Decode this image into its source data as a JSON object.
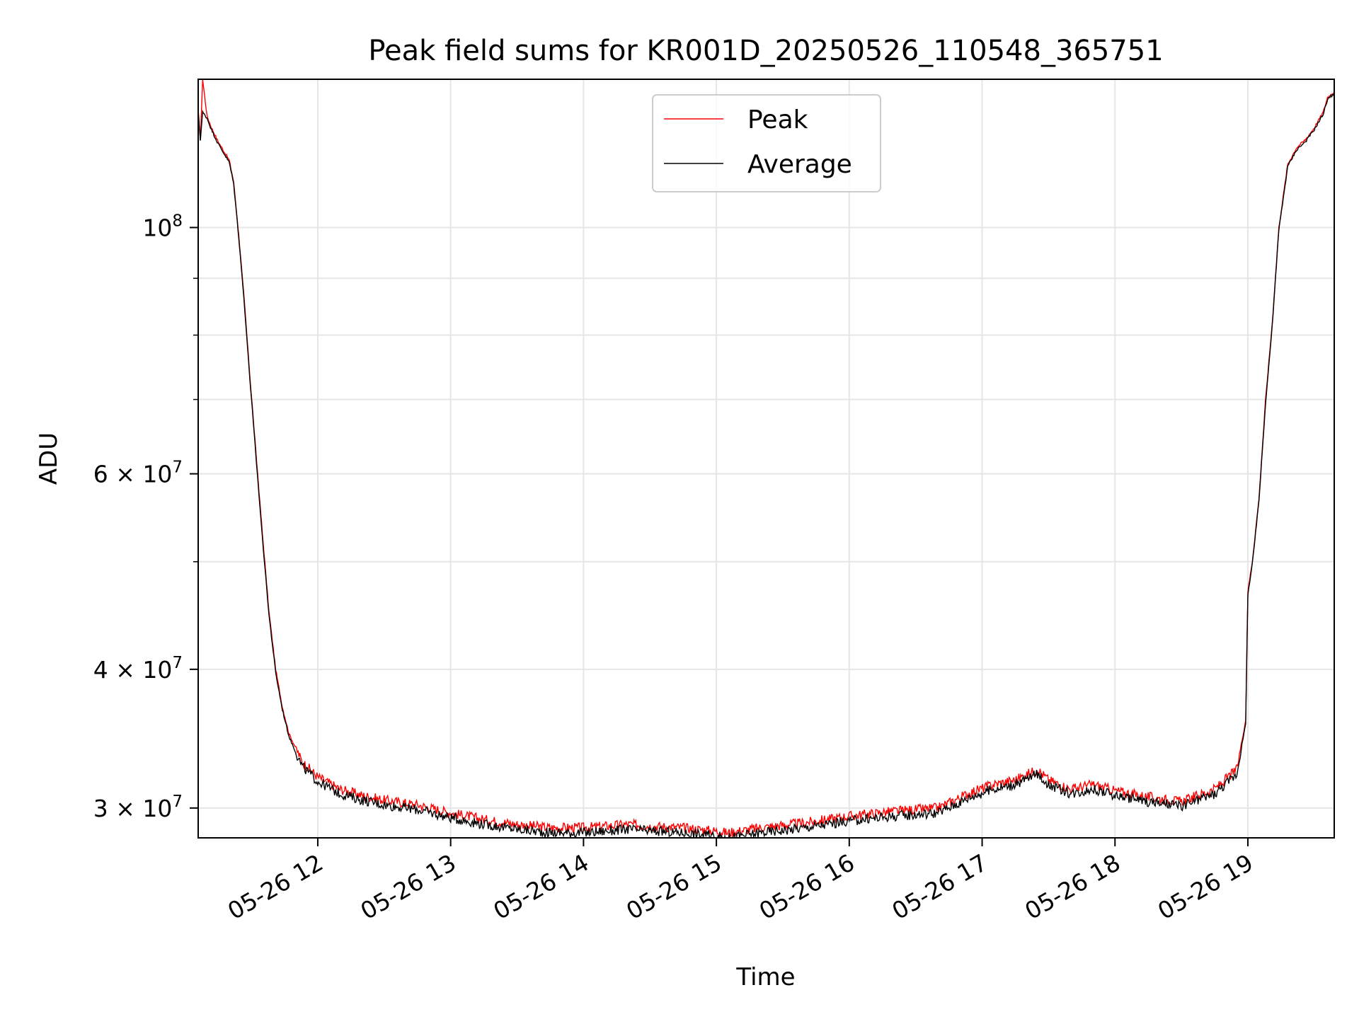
{
  "chart_data": {
    "type": "line",
    "title": "Peak field sums for KR001D_20250526_110548_365751",
    "xlabel": "Time",
    "ylabel": "ADU",
    "yscale": "log",
    "ylim": [
      28200000,
      136000000
    ],
    "xlim": [
      "2025-05-26 11:06",
      "2025-05-26 19:39"
    ],
    "grid": true,
    "legend_position": "top-center",
    "x_ticks": [
      {
        "value": "2025-05-26 12:00",
        "label": "05-26 12"
      },
      {
        "value": "2025-05-26 13:00",
        "label": "05-26 13"
      },
      {
        "value": "2025-05-26 14:00",
        "label": "05-26 14"
      },
      {
        "value": "2025-05-26 15:00",
        "label": "05-26 15"
      },
      {
        "value": "2025-05-26 16:00",
        "label": "05-26 16"
      },
      {
        "value": "2025-05-26 17:00",
        "label": "05-26 17"
      },
      {
        "value": "2025-05-26 18:00",
        "label": "05-26 18"
      },
      {
        "value": "2025-05-26 19:00",
        "label": "05-26 19"
      }
    ],
    "y_ticks": [
      {
        "value": 30000000,
        "label": "3 × 10",
        "exp": "7"
      },
      {
        "value": 40000000,
        "label": "4 × 10",
        "exp": "7"
      },
      {
        "value": 60000000,
        "label": "6 × 10",
        "exp": "7"
      },
      {
        "value": 100000000,
        "label": "10",
        "exp": "8"
      }
    ],
    "y_minor_ticks": [
      50000000,
      70000000,
      80000000,
      90000000
    ],
    "series": [
      {
        "name": "Peak",
        "color": "#ff0000",
        "x": [
          "2025-05-26 11:06",
          "2025-05-26 11:07",
          "2025-05-26 11:08",
          "2025-05-26 11:10",
          "2025-05-26 11:12",
          "2025-05-26 11:15",
          "2025-05-26 11:20",
          "2025-05-26 11:22",
          "2025-05-26 11:24",
          "2025-05-26 11:25",
          "2025-05-26 11:27",
          "2025-05-26 11:29",
          "2025-05-26 11:32",
          "2025-05-26 11:35",
          "2025-05-26 11:38",
          "2025-05-26 11:41",
          "2025-05-26 11:44",
          "2025-05-26 11:47",
          "2025-05-26 11:50",
          "2025-05-26 11:53",
          "2025-05-26 12:00",
          "2025-05-26 12:10",
          "2025-05-26 12:20",
          "2025-05-26 12:30",
          "2025-05-26 12:45",
          "2025-05-26 13:00",
          "2025-05-26 13:15",
          "2025-05-26 13:30",
          "2025-05-26 13:45",
          "2025-05-26 14:00",
          "2025-05-26 14:10",
          "2025-05-26 14:20",
          "2025-05-26 14:30",
          "2025-05-26 14:45",
          "2025-05-26 15:00",
          "2025-05-26 15:05",
          "2025-05-26 15:20",
          "2025-05-26 15:40",
          "2025-05-26 16:00",
          "2025-05-26 16:20",
          "2025-05-26 16:40",
          "2025-05-26 16:55",
          "2025-05-26 17:05",
          "2025-05-26 17:15",
          "2025-05-26 17:25",
          "2025-05-26 17:30",
          "2025-05-26 17:40",
          "2025-05-26 17:50",
          "2025-05-26 18:00",
          "2025-05-26 18:15",
          "2025-05-26 18:30",
          "2025-05-26 18:45",
          "2025-05-26 18:55",
          "2025-05-26 18:59",
          "2025-05-26 19:00",
          "2025-05-26 19:02",
          "2025-05-26 19:05",
          "2025-05-26 19:08",
          "2025-05-26 19:11",
          "2025-05-26 19:14",
          "2025-05-26 19:18",
          "2025-05-26 19:22",
          "2025-05-26 19:26",
          "2025-05-26 19:30",
          "2025-05-26 19:34",
          "2025-05-26 19:36",
          "2025-05-26 19:39"
        ],
        "y": [
          127500000,
          120000000,
          136000000,
          126000000,
          123000000,
          119500000,
          115000000,
          110000000,
          100000000,
          95000000,
          85000000,
          75000000,
          63000000,
          53000000,
          45000000,
          40000000,
          37000000,
          35000000,
          34000000,
          33000000,
          32000000,
          31200000,
          30800000,
          30500000,
          30200000,
          29700000,
          29300000,
          29000000,
          28800000,
          28800000,
          28900000,
          29000000,
          28900000,
          28800000,
          28600000,
          28500000,
          28800000,
          29100000,
          29500000,
          29800000,
          30000000,
          31000000,
          31500000,
          31800000,
          32500000,
          31800000,
          31200000,
          31500000,
          31100000,
          30700000,
          30400000,
          31200000,
          32500000,
          36000000,
          47000000,
          50000000,
          57000000,
          70000000,
          82000000,
          100000000,
          114000000,
          118000000,
          120000000,
          123000000,
          127000000,
          131000000,
          132500000
        ]
      },
      {
        "name": "Average",
        "color": "#000000",
        "x": [
          "2025-05-26 11:06",
          "2025-05-26 11:07",
          "2025-05-26 11:08",
          "2025-05-26 11:10",
          "2025-05-26 11:12",
          "2025-05-26 11:15",
          "2025-05-26 11:20",
          "2025-05-26 11:22",
          "2025-05-26 11:24",
          "2025-05-26 11:25",
          "2025-05-26 11:27",
          "2025-05-26 11:29",
          "2025-05-26 11:32",
          "2025-05-26 11:35",
          "2025-05-26 11:38",
          "2025-05-26 11:41",
          "2025-05-26 11:44",
          "2025-05-26 11:47",
          "2025-05-26 11:50",
          "2025-05-26 11:53",
          "2025-05-26 12:00",
          "2025-05-26 12:10",
          "2025-05-26 12:20",
          "2025-05-26 12:30",
          "2025-05-26 12:45",
          "2025-05-26 13:00",
          "2025-05-26 13:15",
          "2025-05-26 13:30",
          "2025-05-26 13:45",
          "2025-05-26 14:00",
          "2025-05-26 14:10",
          "2025-05-26 14:20",
          "2025-05-26 14:30",
          "2025-05-26 14:45",
          "2025-05-26 15:00",
          "2025-05-26 15:05",
          "2025-05-26 15:20",
          "2025-05-26 15:40",
          "2025-05-26 16:00",
          "2025-05-26 16:20",
          "2025-05-26 16:40",
          "2025-05-26 16:55",
          "2025-05-26 17:05",
          "2025-05-26 17:15",
          "2025-05-26 17:25",
          "2025-05-26 17:30",
          "2025-05-26 17:40",
          "2025-05-26 17:50",
          "2025-05-26 18:00",
          "2025-05-26 18:15",
          "2025-05-26 18:30",
          "2025-05-26 18:45",
          "2025-05-26 18:55",
          "2025-05-26 18:59",
          "2025-05-26 19:00",
          "2025-05-26 19:02",
          "2025-05-26 19:05",
          "2025-05-26 19:08",
          "2025-05-26 19:11",
          "2025-05-26 19:14",
          "2025-05-26 19:18",
          "2025-05-26 19:22",
          "2025-05-26 19:26",
          "2025-05-26 19:30",
          "2025-05-26 19:34",
          "2025-05-26 19:36",
          "2025-05-26 19:39"
        ],
        "y": [
          127000000,
          120000000,
          127000000,
          125500000,
          122500000,
          119000000,
          114500000,
          109500000,
          99500000,
          94500000,
          84500000,
          74500000,
          62500000,
          52500000,
          44700000,
          39700000,
          36800000,
          34800000,
          33700000,
          32700000,
          31700000,
          30900000,
          30500000,
          30200000,
          29900000,
          29400000,
          29000000,
          28700000,
          28500000,
          28500000,
          28600000,
          28700000,
          28600000,
          28500000,
          28300000,
          28200000,
          28500000,
          28800000,
          29200000,
          29500000,
          29700000,
          30700000,
          31200000,
          31500000,
          32200000,
          31500000,
          30900000,
          31200000,
          30800000,
          30400000,
          30100000,
          30900000,
          32200000,
          35700000,
          46700000,
          49700000,
          56700000,
          69500000,
          81500000,
          99500000,
          113500000,
          117500000,
          119500000,
          122500000,
          126500000,
          130500000,
          132000000
        ]
      }
    ]
  }
}
